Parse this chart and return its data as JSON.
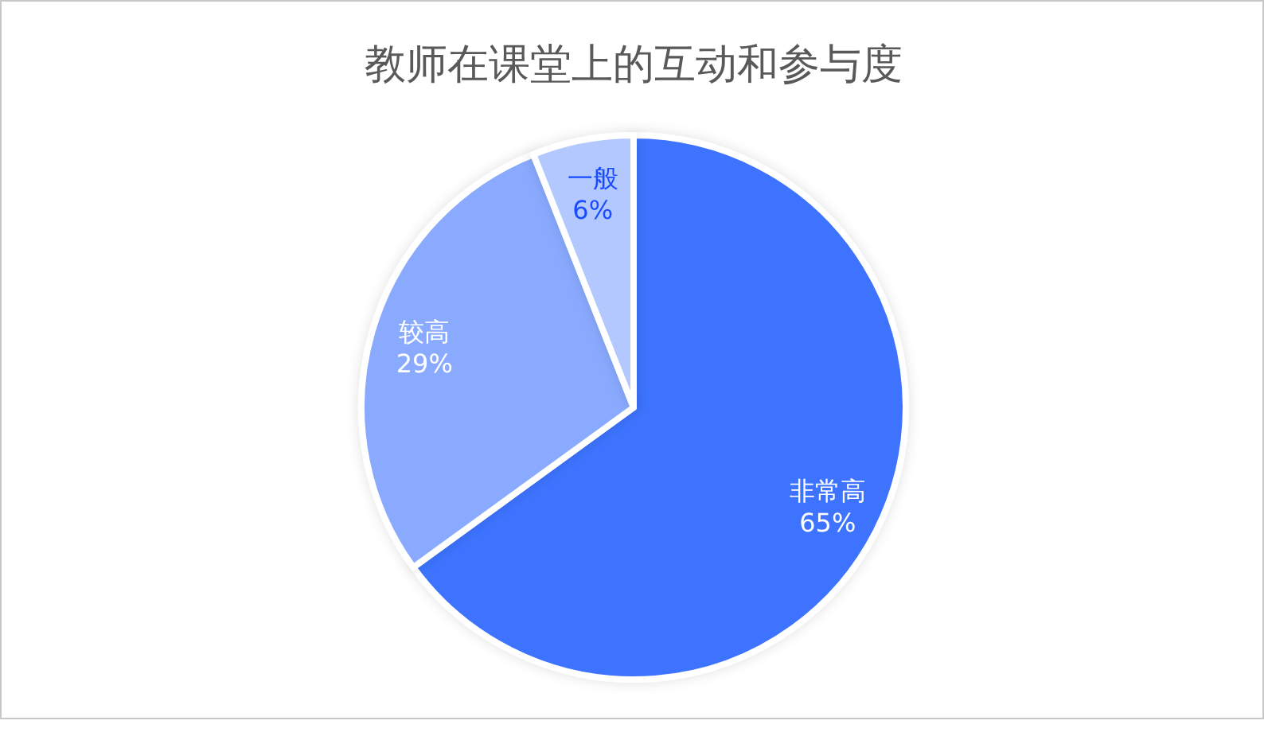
{
  "chart_data": {
    "type": "pie",
    "title": "教师在课堂上的互动和参与度",
    "categories": [
      "非常高",
      "较高",
      "一般"
    ],
    "values": [
      65,
      29,
      6
    ],
    "colors": [
      "#3d73ff",
      "#8aaaff",
      "#b3c8ff"
    ],
    "value_labels": [
      "65%",
      "29%",
      "6%"
    ],
    "legend": false
  }
}
